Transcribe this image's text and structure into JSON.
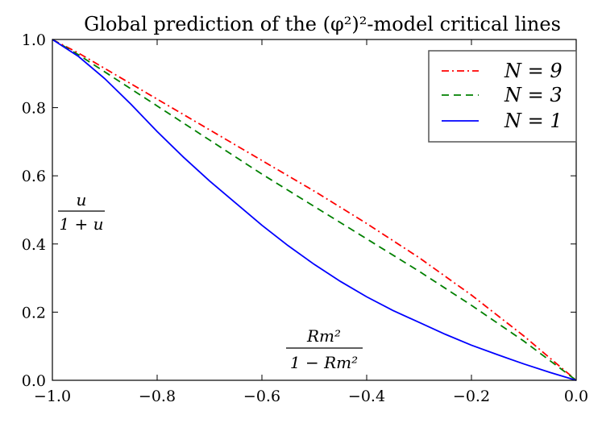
{
  "chart_data": {
    "type": "line",
    "title": "Global prediction of the (φ²)²-model critical lines",
    "xlim": [
      -1.0,
      0.0
    ],
    "ylim": [
      0.0,
      1.0
    ],
    "xticks": [
      -1.0,
      -0.8,
      -0.6,
      -0.4,
      -0.2,
      0.0
    ],
    "xtick_labels": [
      "−1.0",
      "−0.8",
      "−0.6",
      "−0.4",
      "−0.2",
      "0.0"
    ],
    "yticks": [
      0.0,
      0.2,
      0.4,
      0.6,
      0.8,
      1.0
    ],
    "ytick_labels": [
      "0.0",
      "0.2",
      "0.4",
      "0.6",
      "0.8",
      "1.0"
    ],
    "annotations": {
      "y_label": {
        "numerator": "u",
        "denominator": "1 + u"
      },
      "x_label": {
        "numerator": "Rm²",
        "denominator": "1 − Rm²"
      }
    },
    "legend_position": "top-right",
    "series": [
      {
        "name": "N = 9",
        "color": "#ff0000",
        "style": "dashdot",
        "x": [
          -1.0,
          -0.95,
          -0.9,
          -0.8,
          -0.7,
          -0.6,
          -0.5,
          -0.4,
          -0.3,
          -0.2,
          -0.1,
          0.0
        ],
        "y": [
          1.0,
          0.96,
          0.915,
          0.825,
          0.735,
          0.645,
          0.555,
          0.46,
          0.36,
          0.25,
          0.13,
          0.0
        ]
      },
      {
        "name": "N = 3",
        "color": "#008000",
        "style": "dashed",
        "x": [
          -1.0,
          -0.95,
          -0.9,
          -0.8,
          -0.7,
          -0.6,
          -0.5,
          -0.4,
          -0.3,
          -0.2,
          -0.1,
          0.0
        ],
        "y": [
          1.0,
          0.955,
          0.905,
          0.805,
          0.705,
          0.605,
          0.51,
          0.415,
          0.32,
          0.22,
          0.115,
          0.0
        ]
      },
      {
        "name": "N = 1",
        "color": "#0000ff",
        "style": "solid",
        "x": [
          -1.0,
          -0.95,
          -0.9,
          -0.85,
          -0.8,
          -0.75,
          -0.7,
          -0.65,
          -0.6,
          -0.55,
          -0.5,
          -0.45,
          -0.4,
          -0.35,
          -0.3,
          -0.25,
          -0.2,
          -0.15,
          -0.1,
          -0.05,
          0.0
        ],
        "y": [
          1.0,
          0.95,
          0.885,
          0.81,
          0.73,
          0.655,
          0.585,
          0.52,
          0.455,
          0.395,
          0.34,
          0.29,
          0.245,
          0.205,
          0.17,
          0.135,
          0.103,
          0.075,
          0.048,
          0.023,
          0.0
        ]
      }
    ]
  }
}
